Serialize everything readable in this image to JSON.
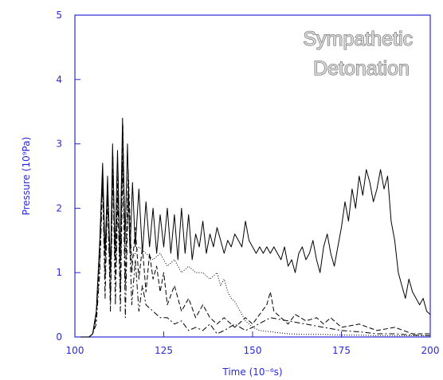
{
  "chart_data": {
    "type": "line",
    "title": "",
    "annotation": [
      "Sympathetic",
      "Detonation"
    ],
    "xlabel": "Time (10⁻⁶s)",
    "ylabel": "Pressure (10⁹Pa)",
    "xlim": [
      100,
      200
    ],
    "ylim": [
      0,
      5
    ],
    "xticks": [
      "100",
      "125",
      "150",
      "175",
      "200"
    ],
    "yticks": [
      "0",
      "1",
      "2",
      "3",
      "4",
      "5"
    ],
    "grid": false,
    "colors": {
      "axis": "#2a2ad8",
      "lines": "#000000"
    },
    "series": [
      {
        "style": "solid",
        "x": [
          100,
          104,
          105,
          106,
          107,
          107.8,
          108.5,
          109.2,
          110,
          110.6,
          111.3,
          112,
          112.7,
          113.4,
          114.1,
          114.8,
          115.5,
          116.2,
          117,
          118,
          119,
          120,
          121,
          122,
          123,
          124,
          125,
          126,
          127,
          128,
          129,
          130,
          131,
          132,
          133,
          134,
          135,
          136,
          137,
          138,
          139,
          140,
          141,
          142,
          143,
          144,
          145,
          146,
          147,
          148,
          149,
          150,
          151,
          152,
          153,
          154,
          155,
          156,
          157,
          158,
          159,
          160,
          161,
          162,
          163,
          164,
          165,
          166,
          167,
          168,
          169,
          170,
          171,
          172,
          173,
          174,
          175,
          176,
          177,
          178,
          179,
          180,
          181,
          182,
          183,
          184,
          185,
          186,
          187,
          188,
          189,
          190,
          191,
          192,
          193,
          194,
          195,
          196,
          197,
          198,
          199,
          200
        ],
        "y": [
          0,
          0,
          0.05,
          0.4,
          1.5,
          2.7,
          1.3,
          2.5,
          1.0,
          3.0,
          1.3,
          2.9,
          1.2,
          3.4,
          1.5,
          3.0,
          1.3,
          2.4,
          1.4,
          2.3,
          1.3,
          2.1,
          1.4,
          2.0,
          1.3,
          1.9,
          1.4,
          2.0,
          1.3,
          1.9,
          1.2,
          2.0,
          1.3,
          1.9,
          1.2,
          1.6,
          1.4,
          1.8,
          1.3,
          1.6,
          1.4,
          1.7,
          1.5,
          1.3,
          1.5,
          1.4,
          1.6,
          1.5,
          1.4,
          1.8,
          1.5,
          1.4,
          1.3,
          1.4,
          1.3,
          1.4,
          1.3,
          1.4,
          1.3,
          1.2,
          1.4,
          1.1,
          1.2,
          1.0,
          1.3,
          1.4,
          1.2,
          1.3,
          1.5,
          1.2,
          1.0,
          1.4,
          1.6,
          1.3,
          1.1,
          1.4,
          1.7,
          2.1,
          1.8,
          2.3,
          2.0,
          2.5,
          2.2,
          2.6,
          2.4,
          2.1,
          2.3,
          2.6,
          2.3,
          2.5,
          1.8,
          1.5,
          1.0,
          0.8,
          0.6,
          0.9,
          0.7,
          0.6,
          0.5,
          0.6,
          0.4,
          0.35
        ]
      },
      {
        "style": "dashed",
        "x": [
          100,
          104,
          105,
          106,
          107,
          107.8,
          108.5,
          109.2,
          110,
          110.7,
          111.4,
          112.1,
          112.8,
          113.5,
          114.2,
          115,
          116,
          117,
          118,
          119,
          120,
          121,
          122,
          123,
          124,
          125,
          126,
          128,
          130,
          132,
          134,
          136,
          138,
          140,
          142,
          145,
          148,
          150,
          152,
          154,
          155,
          156,
          158,
          160,
          162,
          165,
          168,
          170,
          172,
          175,
          180,
          185,
          190,
          195,
          200
        ],
        "y": [
          0,
          0,
          0.05,
          0.3,
          1.2,
          2.6,
          0.9,
          2.4,
          0.6,
          2.8,
          0.9,
          2.6,
          0.7,
          3.3,
          0.8,
          2.6,
          1.0,
          1.7,
          0.9,
          1.4,
          0.7,
          1.3,
          0.9,
          1.1,
          0.7,
          1.0,
          0.5,
          0.8,
          0.4,
          0.6,
          0.3,
          0.5,
          0.3,
          0.2,
          0.3,
          0.15,
          0.3,
          0.2,
          0.35,
          0.5,
          0.7,
          0.4,
          0.3,
          0.2,
          0.35,
          0.25,
          0.3,
          0.2,
          0.3,
          0.15,
          0.2,
          0.1,
          0.15,
          0.05,
          0.05
        ]
      },
      {
        "style": "dash-dot",
        "x": [
          100,
          104,
          105,
          106,
          107,
          107.8,
          108.5,
          109.2,
          110,
          110.7,
          111.4,
          112.1,
          112.8,
          113.5,
          114.2,
          115,
          116,
          117,
          118,
          119,
          120,
          122,
          124,
          126,
          128,
          130,
          132,
          134,
          136,
          138,
          140,
          142,
          145,
          148,
          150,
          155,
          160,
          165,
          170,
          175,
          180,
          185,
          190,
          195,
          200
        ],
        "y": [
          0,
          0,
          0.05,
          0.2,
          1.0,
          2.4,
          0.6,
          2.2,
          0.4,
          2.6,
          0.5,
          2.2,
          0.4,
          2.8,
          0.3,
          2.2,
          0.5,
          1.2,
          0.4,
          0.8,
          0.5,
          0.4,
          0.3,
          0.3,
          0.2,
          0.25,
          0.1,
          0.15,
          0.1,
          0.2,
          0.05,
          0.1,
          0.2,
          0.1,
          0.15,
          0.3,
          0.25,
          0.2,
          0.15,
          0.1,
          0.08,
          0.05,
          0.05,
          0.03,
          0.02
        ]
      },
      {
        "style": "dotted",
        "x": [
          100,
          104,
          105,
          106,
          107,
          107.8,
          108.5,
          109.2,
          110,
          110.7,
          111.4,
          112.1,
          112.8,
          113.5,
          114.2,
          115,
          116,
          118,
          120,
          122,
          124,
          126,
          128,
          130,
          132,
          134,
          136,
          138,
          140,
          141,
          142,
          143,
          144,
          145,
          146,
          147,
          148,
          150,
          152,
          155,
          160,
          165,
          170,
          175,
          180,
          185,
          190,
          195,
          200
        ],
        "y": [
          0,
          0,
          0.05,
          0.3,
          1.4,
          2.5,
          1.2,
          2.3,
          1.1,
          2.6,
          1.2,
          2.4,
          1.1,
          3.1,
          1.3,
          2.2,
          1.2,
          1.4,
          1.3,
          1.2,
          1.3,
          1.1,
          1.2,
          1.0,
          1.1,
          1.0,
          1.0,
          0.9,
          1.0,
          0.8,
          0.9,
          0.7,
          0.6,
          0.55,
          0.45,
          0.35,
          0.25,
          0.15,
          0.1,
          0.08,
          0.05,
          0.04,
          0.04,
          0.03,
          0.03,
          0.02,
          0.02,
          0.02,
          0.02
        ]
      }
    ]
  }
}
